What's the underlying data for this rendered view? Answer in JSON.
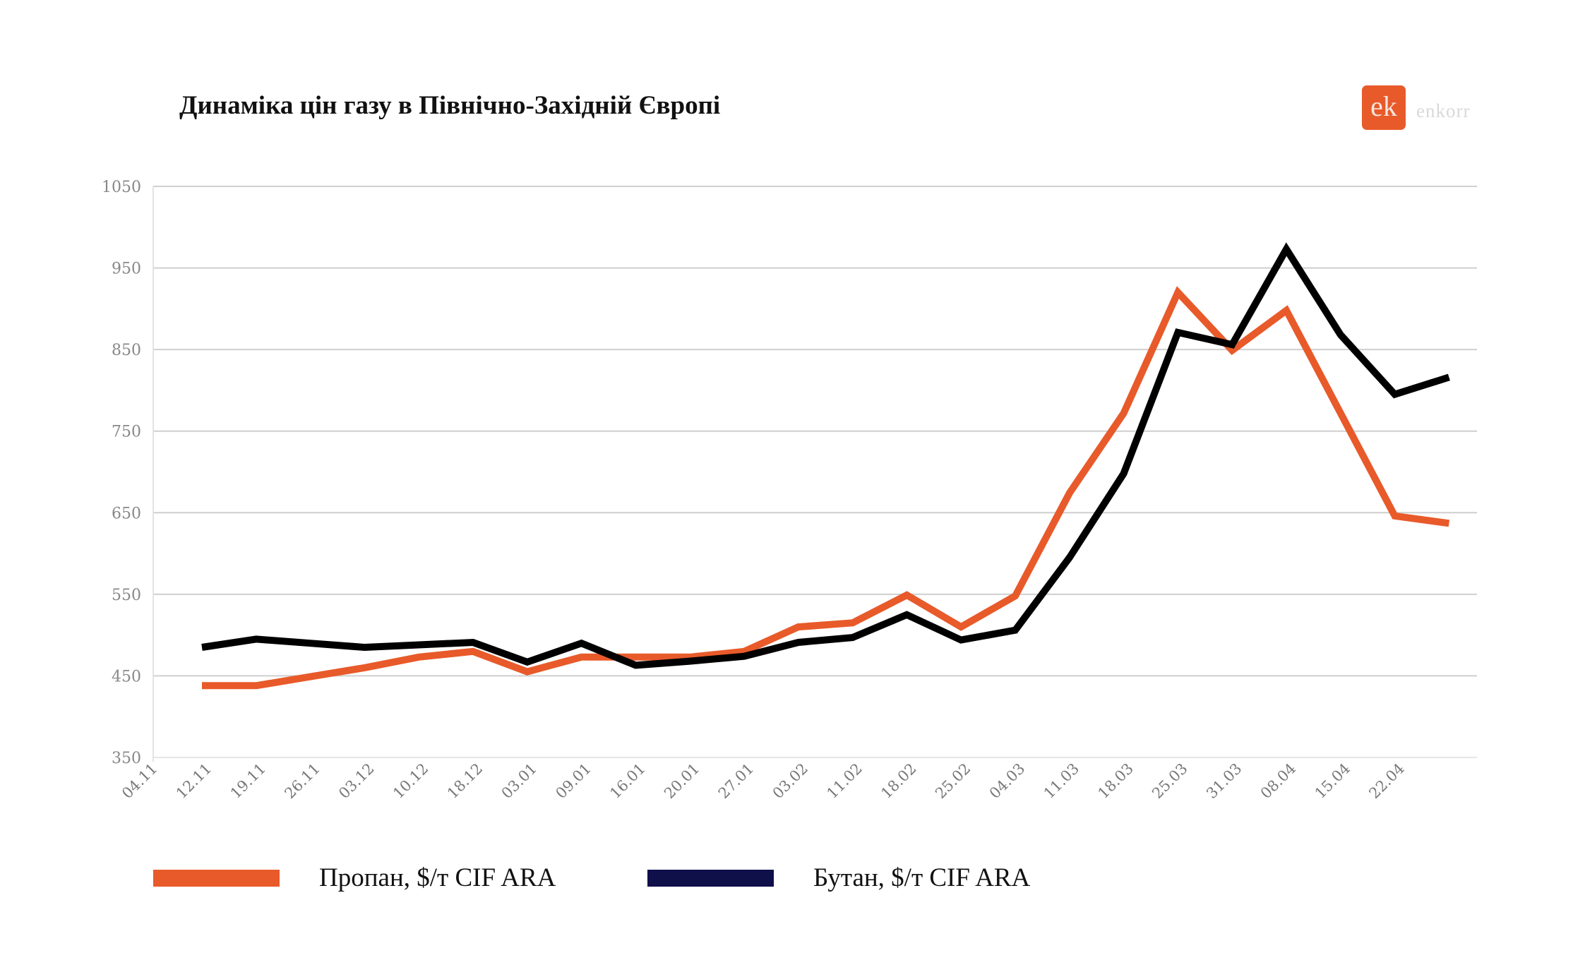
{
  "chart_data": {
    "type": "line",
    "title": "Динаміка цін газу в Північно-Західній Європі",
    "categories": [
      "04.11",
      "12.11",
      "19.11",
      "26.11",
      "03.12",
      "10.12",
      "18.12",
      "03.01",
      "09.01",
      "16.01",
      "20.01",
      "27.01",
      "03.02",
      "11.02",
      "18.02",
      "25.02",
      "04.03",
      "11.03",
      "18.03",
      "25.03",
      "31.03",
      "08.04",
      "15.04",
      "22.04"
    ],
    "series": [
      {
        "name": "Пропан, $/т CIF ARA",
        "color": "#E85A2A",
        "values": [
          438,
          438,
          449,
          460,
          473,
          480,
          455,
          473,
          473,
          473,
          480,
          510,
          515,
          549,
          510,
          548,
          674,
          772,
          920,
          849,
          898,
          772,
          646,
          637
        ]
      },
      {
        "name": "Бутан, $/т CIF ARA",
        "color": "#000000",
        "legend_color": "#0F0F4A",
        "values": [
          485,
          495,
          490,
          485,
          488,
          491,
          467,
          490,
          463,
          468,
          474,
          491,
          497,
          525,
          494,
          506,
          595,
          698,
          871,
          856,
          973,
          868,
          795,
          816
        ]
      }
    ],
    "yticks": [
      "1050",
      "950",
      "850",
      "750",
      "650",
      "550",
      "450",
      "350"
    ],
    "ylim": [
      350,
      1050
    ],
    "grid": true,
    "legend_position": "bottom",
    "xlabel": "",
    "ylabel": ""
  },
  "logo": {
    "mark": "ek",
    "name": "enkorr",
    "color": "#E85A2A"
  }
}
